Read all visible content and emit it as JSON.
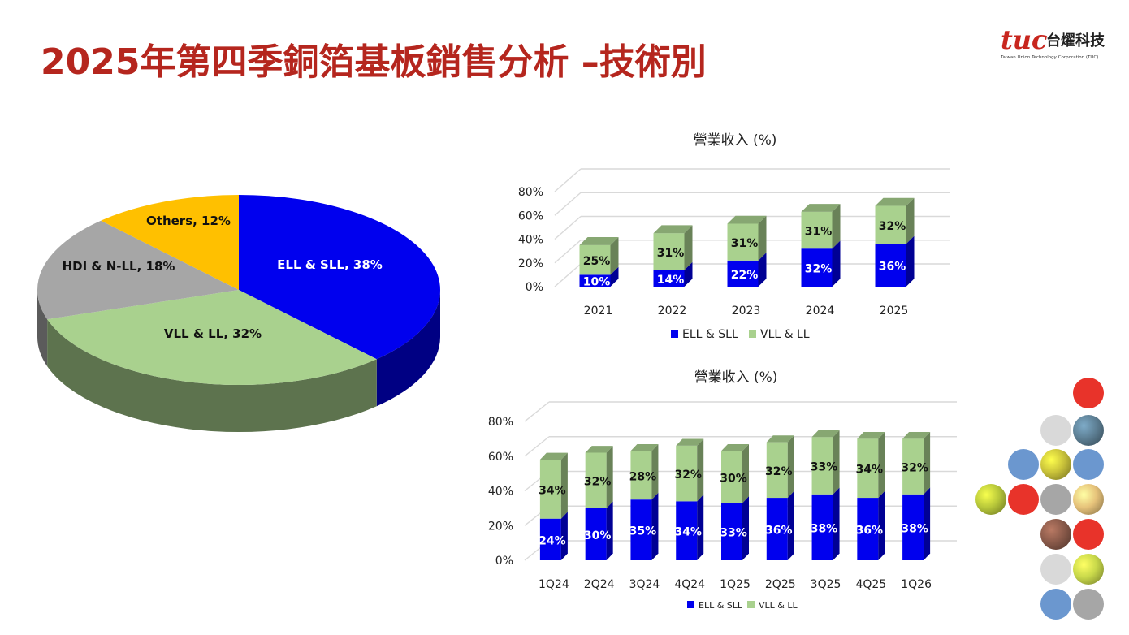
{
  "title": "2025年第四季銅箔基板銷售分析 –技術別",
  "logo": {
    "mark": "tuc",
    "name": "台燿科技",
    "subtitle": "Taiwan Union Technology Corporation (TUC)"
  },
  "chart_data": [
    {
      "type": "pie",
      "title": "",
      "slices": [
        {
          "label": "ELL & SLL, 38%",
          "value": 38,
          "color": "#0000ee"
        },
        {
          "label": "VLL & LL, 32%",
          "value": 32,
          "color": "#a9d18e"
        },
        {
          "label": "HDI & N-LL, 18%",
          "value": 18,
          "color": "#a6a6a6"
        },
        {
          "label": "Others, 12%",
          "value": 12,
          "color": "#ffc000"
        }
      ]
    },
    {
      "type": "bar",
      "stacked": true,
      "title": "營業收入 (%)",
      "categories": [
        "2021",
        "2022",
        "2023",
        "2024",
        "2025"
      ],
      "series": [
        {
          "name": "ELL & SLL",
          "color": "#0000ee",
          "values": [
            10,
            14,
            22,
            32,
            36
          ],
          "labels": [
            "10%",
            "14%",
            "22%",
            "32%",
            "36%"
          ]
        },
        {
          "name": "VLL & LL",
          "color": "#a9d18e",
          "values": [
            25,
            31,
            31,
            31,
            32
          ],
          "labels": [
            "25%",
            "31%",
            "31%",
            "31%",
            "32%"
          ]
        }
      ],
      "ylim": [
        0,
        80
      ],
      "yticks": [
        "0%",
        "20%",
        "40%",
        "60%",
        "80%"
      ],
      "grid": true,
      "legend": "bottom"
    },
    {
      "type": "bar",
      "stacked": true,
      "title": "營業收入 (%)",
      "categories": [
        "1Q24",
        "2Q24",
        "3Q24",
        "4Q24",
        "1Q25",
        "2Q25",
        "3Q25",
        "4Q25",
        "1Q26"
      ],
      "series": [
        {
          "name": "ELL & SLL",
          "color": "#0000ee",
          "values": [
            24,
            30,
            35,
            34,
            33,
            36,
            38,
            36,
            38
          ],
          "labels": [
            "24%",
            "30%",
            "35%",
            "34%",
            "33%",
            "36%",
            "38%",
            "36%",
            "38%"
          ]
        },
        {
          "name": "VLL & LL",
          "color": "#a9d18e",
          "values": [
            34,
            32,
            28,
            32,
            30,
            32,
            33,
            34,
            32
          ],
          "labels": [
            "34%",
            "32%",
            "28%",
            "32%",
            "30%",
            "32%",
            "33%",
            "34%",
            "32%"
          ]
        }
      ],
      "ylim": [
        0,
        80
      ],
      "yticks": [
        "0%",
        "20%",
        "40%",
        "60%",
        "80%"
      ],
      "grid": true,
      "legend": "bottom"
    }
  ],
  "decor": {
    "circle_colors": {
      "red": "#e8332a",
      "blue": "#6b97cf",
      "gray": "#a6a6a6",
      "light": "#d9d9d9",
      "photo1": "#5d7f94",
      "photo2": "#c9c23a",
      "photo3": "#b8c83a",
      "photo4": "#e6c27a",
      "photo5": "#8a5a4a",
      "photo6": "#c8d84a"
    }
  }
}
